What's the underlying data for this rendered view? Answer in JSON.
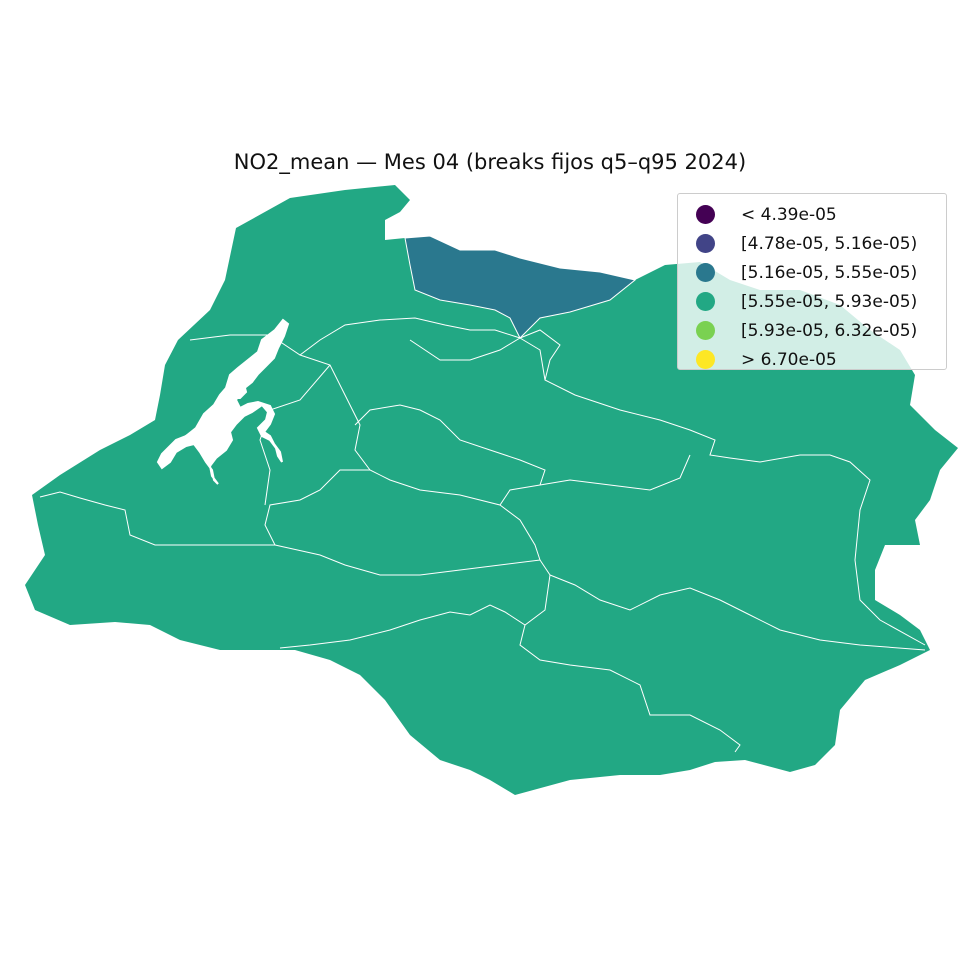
{
  "title": "NO2_mean — Mes 04 (breaks fijos q5–q95 2024)",
  "legend": [
    {
      "label": "< 4.39e-05",
      "color": "#440154"
    },
    {
      "label": "[4.78e-05, 5.16e-05)",
      "color": "#414487"
    },
    {
      "label": "[5.16e-05, 5.55e-05)",
      "color": "#2a788e"
    },
    {
      "label": "[5.55e-05, 5.93e-05)",
      "color": "#22a884"
    },
    {
      "label": "[5.93e-05, 6.32e-05)",
      "color": "#7ad151"
    },
    {
      "label": "> 6.70e-05",
      "color": "#fde725"
    }
  ],
  "colors": {
    "region_fill": "#22a884",
    "highlight_fill": "#2a788e",
    "boundary": "#ffffff"
  }
}
